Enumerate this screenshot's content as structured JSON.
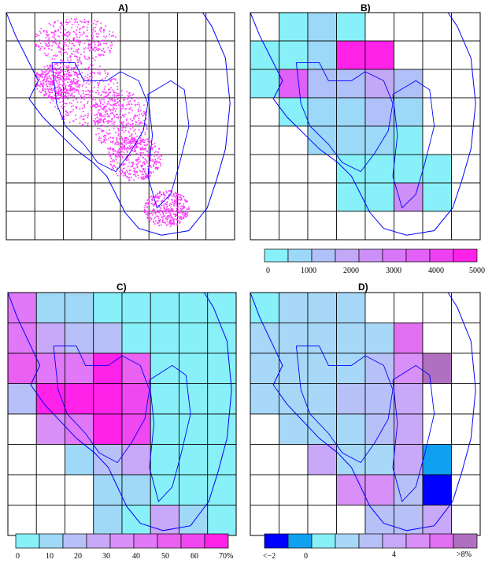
{
  "panels": [
    {
      "id": "A",
      "label": "A)"
    },
    {
      "id": "B",
      "label": "B)",
      "legend_ticks": [
        "0",
        "1000",
        "2000",
        "3000",
        "4000",
        "5000"
      ]
    },
    {
      "id": "C",
      "label": "C)",
      "legend_ticks": [
        "0",
        "10",
        "20",
        "30",
        "40",
        "50",
        "60",
        "70%"
      ]
    },
    {
      "id": "D",
      "label": "D)",
      "legend_ticks": [
        "<−2",
        "0",
        "4",
        ">8%"
      ]
    }
  ],
  "colors": {
    "grid": "#000000",
    "coast": "#0000ff",
    "points": "#ff33ff",
    "legend_B": [
      "#88f0f8",
      "#9cd8f8",
      "#b0c0f8",
      "#c4a8f8",
      "#cc90f8",
      "#d878f8",
      "#e060f8",
      "#ee40f0",
      "#ff22e8"
    ],
    "legend_C": [
      "#88f0f8",
      "#a0d8f8",
      "#b8c0f8",
      "#c8a8f8",
      "#d890f8",
      "#e078f8",
      "#ea60f0",
      "#f048f0",
      "#ff22e8"
    ],
    "legend_D": [
      "#0000ff",
      "#10a0f0",
      "#88f0f8",
      "#a8d8f8",
      "#b8c0f8",
      "#c8a8f8",
      "#d890f8",
      "#e070f0",
      "#b070c0"
    ]
  }
}
